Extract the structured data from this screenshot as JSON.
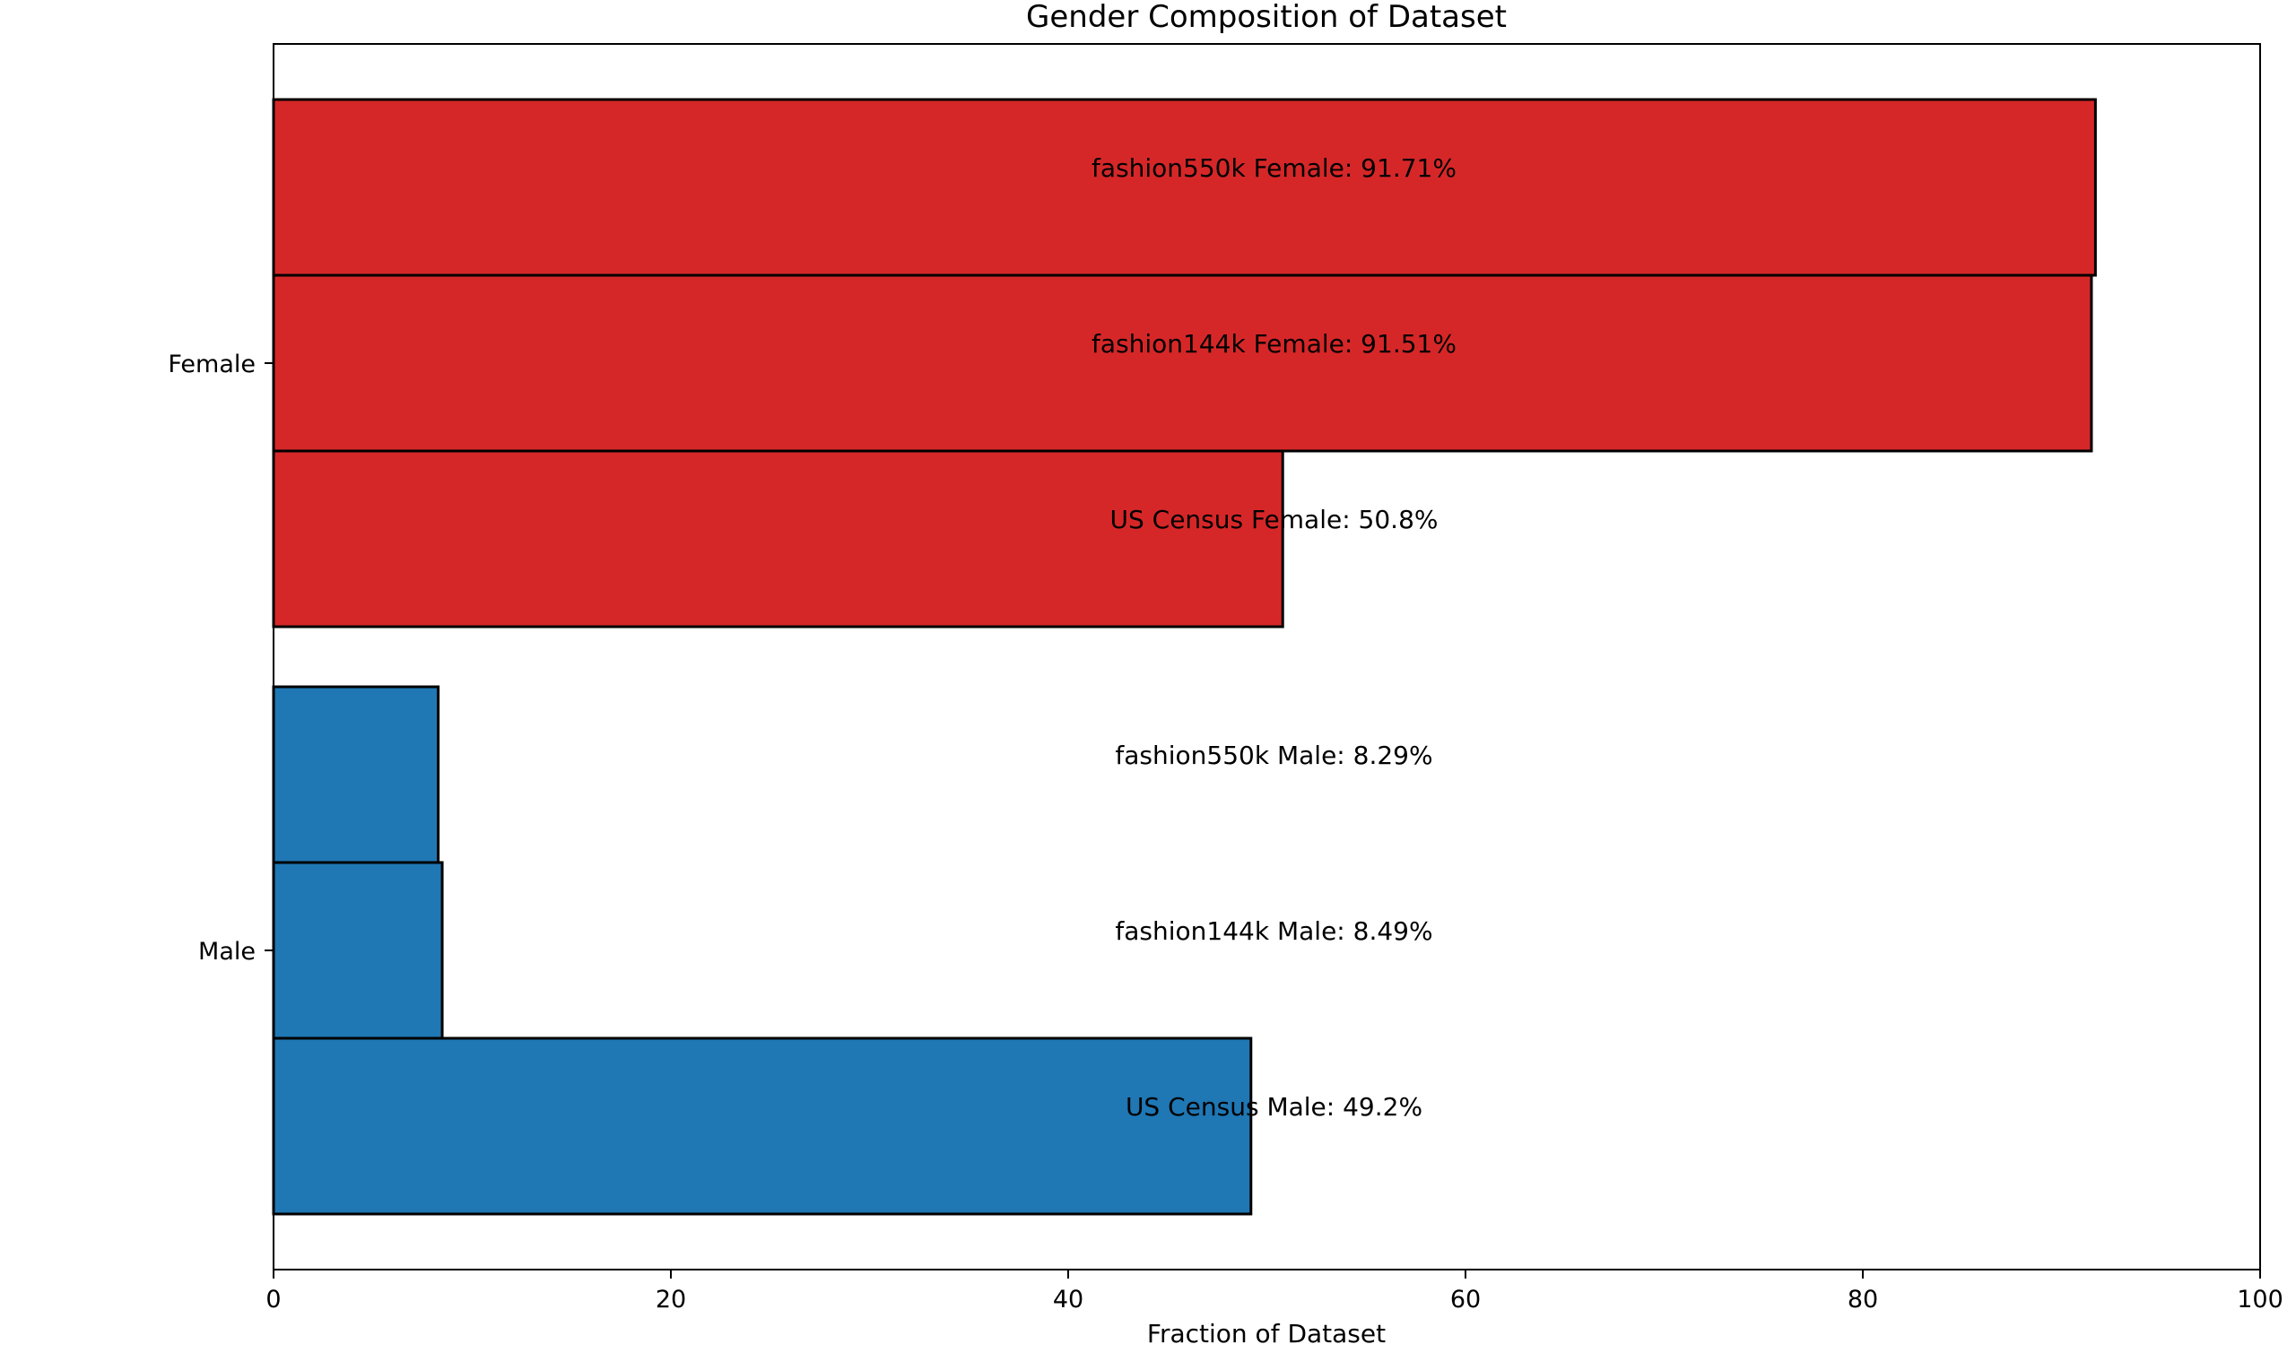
{
  "chart_data": {
    "type": "bar",
    "orientation": "horizontal",
    "title": "Gender Composition of Dataset",
    "xlabel": "Fraction of Dataset",
    "ylabel": "",
    "xlim": [
      0,
      100
    ],
    "xticks": [
      0,
      20,
      40,
      60,
      80,
      100
    ],
    "grid": false,
    "categories": [
      "Female",
      "Male"
    ],
    "colors": {
      "Female": "#d62728",
      "Male": "#1f77b4"
    },
    "bars": [
      {
        "category": "Female",
        "dataset": "fashion550k",
        "value": 91.71,
        "label": "fashion550k Female: 91.71%"
      },
      {
        "category": "Female",
        "dataset": "fashion144k",
        "value": 91.51,
        "label": "fashion144k Female: 91.51%"
      },
      {
        "category": "Female",
        "dataset": "US Census",
        "value": 50.8,
        "label": "US Census Female: 50.8%"
      },
      {
        "category": "Male",
        "dataset": "fashion550k",
        "value": 8.29,
        "label": "fashion550k Male: 8.29%"
      },
      {
        "category": "Male",
        "dataset": "fashion144k",
        "value": 8.49,
        "label": "fashion144k Male: 8.49%"
      },
      {
        "category": "Male",
        "dataset": "US Census",
        "value": 49.2,
        "label": "US Census Male: 49.2%"
      }
    ]
  }
}
